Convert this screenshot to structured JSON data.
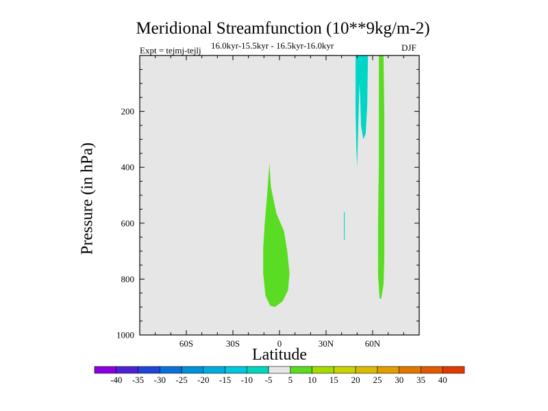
{
  "chart_data": {
    "type": "heatmap",
    "title": "Meridional Streamfunction (10**9kg/m-2)",
    "left_label": "Expt = tejmj-tejlj",
    "center_label": "16.0kyr-15.5kyr - 16.5kyr-16.0kyr",
    "right_label": "DJF",
    "xlabel": "Latitude",
    "ylabel": "Pressure (in hPa)",
    "xlim": [
      -90,
      90
    ],
    "ylim": [
      1000,
      0
    ],
    "x_ticks": [
      {
        "value": -60,
        "label": "60S"
      },
      {
        "value": -30,
        "label": "30S"
      },
      {
        "value": 0,
        "label": "0"
      },
      {
        "value": 30,
        "label": "30N"
      },
      {
        "value": 60,
        "label": "60N"
      }
    ],
    "y_ticks": [
      {
        "value": 200,
        "label": "200"
      },
      {
        "value": 400,
        "label": "400"
      },
      {
        "value": 600,
        "label": "600"
      },
      {
        "value": 800,
        "label": "800"
      },
      {
        "value": 1000,
        "label": "1000"
      }
    ],
    "background_color": "#e6e6e6",
    "regions": [
      {
        "name": "tropical-positive-cell",
        "level_range": "5 to 10",
        "color": "#5bdc24",
        "polygon": [
          [
            -6.5,
            385
          ],
          [
            -5.5,
            470
          ],
          [
            -2,
            565
          ],
          [
            3,
            630
          ],
          [
            5,
            700
          ],
          [
            6.5,
            780
          ],
          [
            5.5,
            840
          ],
          [
            2,
            880
          ],
          [
            -3,
            900
          ],
          [
            -6,
            895
          ],
          [
            -9,
            860
          ],
          [
            -10.5,
            780
          ],
          [
            -10.5,
            690
          ],
          [
            -9.5,
            600
          ],
          [
            -8,
            500
          ]
        ]
      },
      {
        "name": "northern-positive-band",
        "level_range": "5 to 10",
        "color": "#5bdc24",
        "polygon": [
          [
            64,
            0
          ],
          [
            67,
            0
          ],
          [
            67.5,
            200
          ],
          [
            67.5,
            730
          ],
          [
            67,
            820
          ],
          [
            65.5,
            870
          ],
          [
            64.5,
            870
          ],
          [
            63.5,
            790
          ],
          [
            63.5,
            600
          ],
          [
            64,
            380
          ]
        ]
      },
      {
        "name": "northern-negative-wide",
        "level_range": "-10 to -5",
        "color": "#00d6c6",
        "polygon": [
          [
            49,
            0
          ],
          [
            57,
            0
          ],
          [
            56.5,
            180
          ],
          [
            55.5,
            280
          ],
          [
            54,
            300
          ],
          [
            52.5,
            250
          ],
          [
            52,
            150
          ],
          [
            51.5,
            100
          ],
          [
            51,
            200
          ],
          [
            50,
            400
          ],
          [
            49.5,
            330
          ],
          [
            49,
            200
          ]
        ]
      },
      {
        "name": "northern-negative-sliver",
        "level_range": "-10 to -5",
        "color": "#00d6c6",
        "polygon": [
          [
            41.5,
            560
          ],
          [
            42,
            560
          ],
          [
            42,
            660
          ],
          [
            41.5,
            660
          ]
        ]
      }
    ],
    "colorbar": {
      "labels": [
        "-40",
        "-35",
        "-30",
        "-25",
        "-20",
        "-15",
        "-10",
        "-5",
        "5",
        "10",
        "15",
        "20",
        "25",
        "30",
        "35",
        "40"
      ],
      "colors": [
        "#8a00e0",
        "#4d22d6",
        "#1e45d6",
        "#0b70d8",
        "#0092d6",
        "#00aee0",
        "#00c8e0",
        "#00d6c0",
        "#e6e6e6",
        "#5bdc24",
        "#a4dc00",
        "#c8d400",
        "#dcbc00",
        "#e09e00",
        "#e07800",
        "#e05a00",
        "#e03a00"
      ]
    }
  }
}
